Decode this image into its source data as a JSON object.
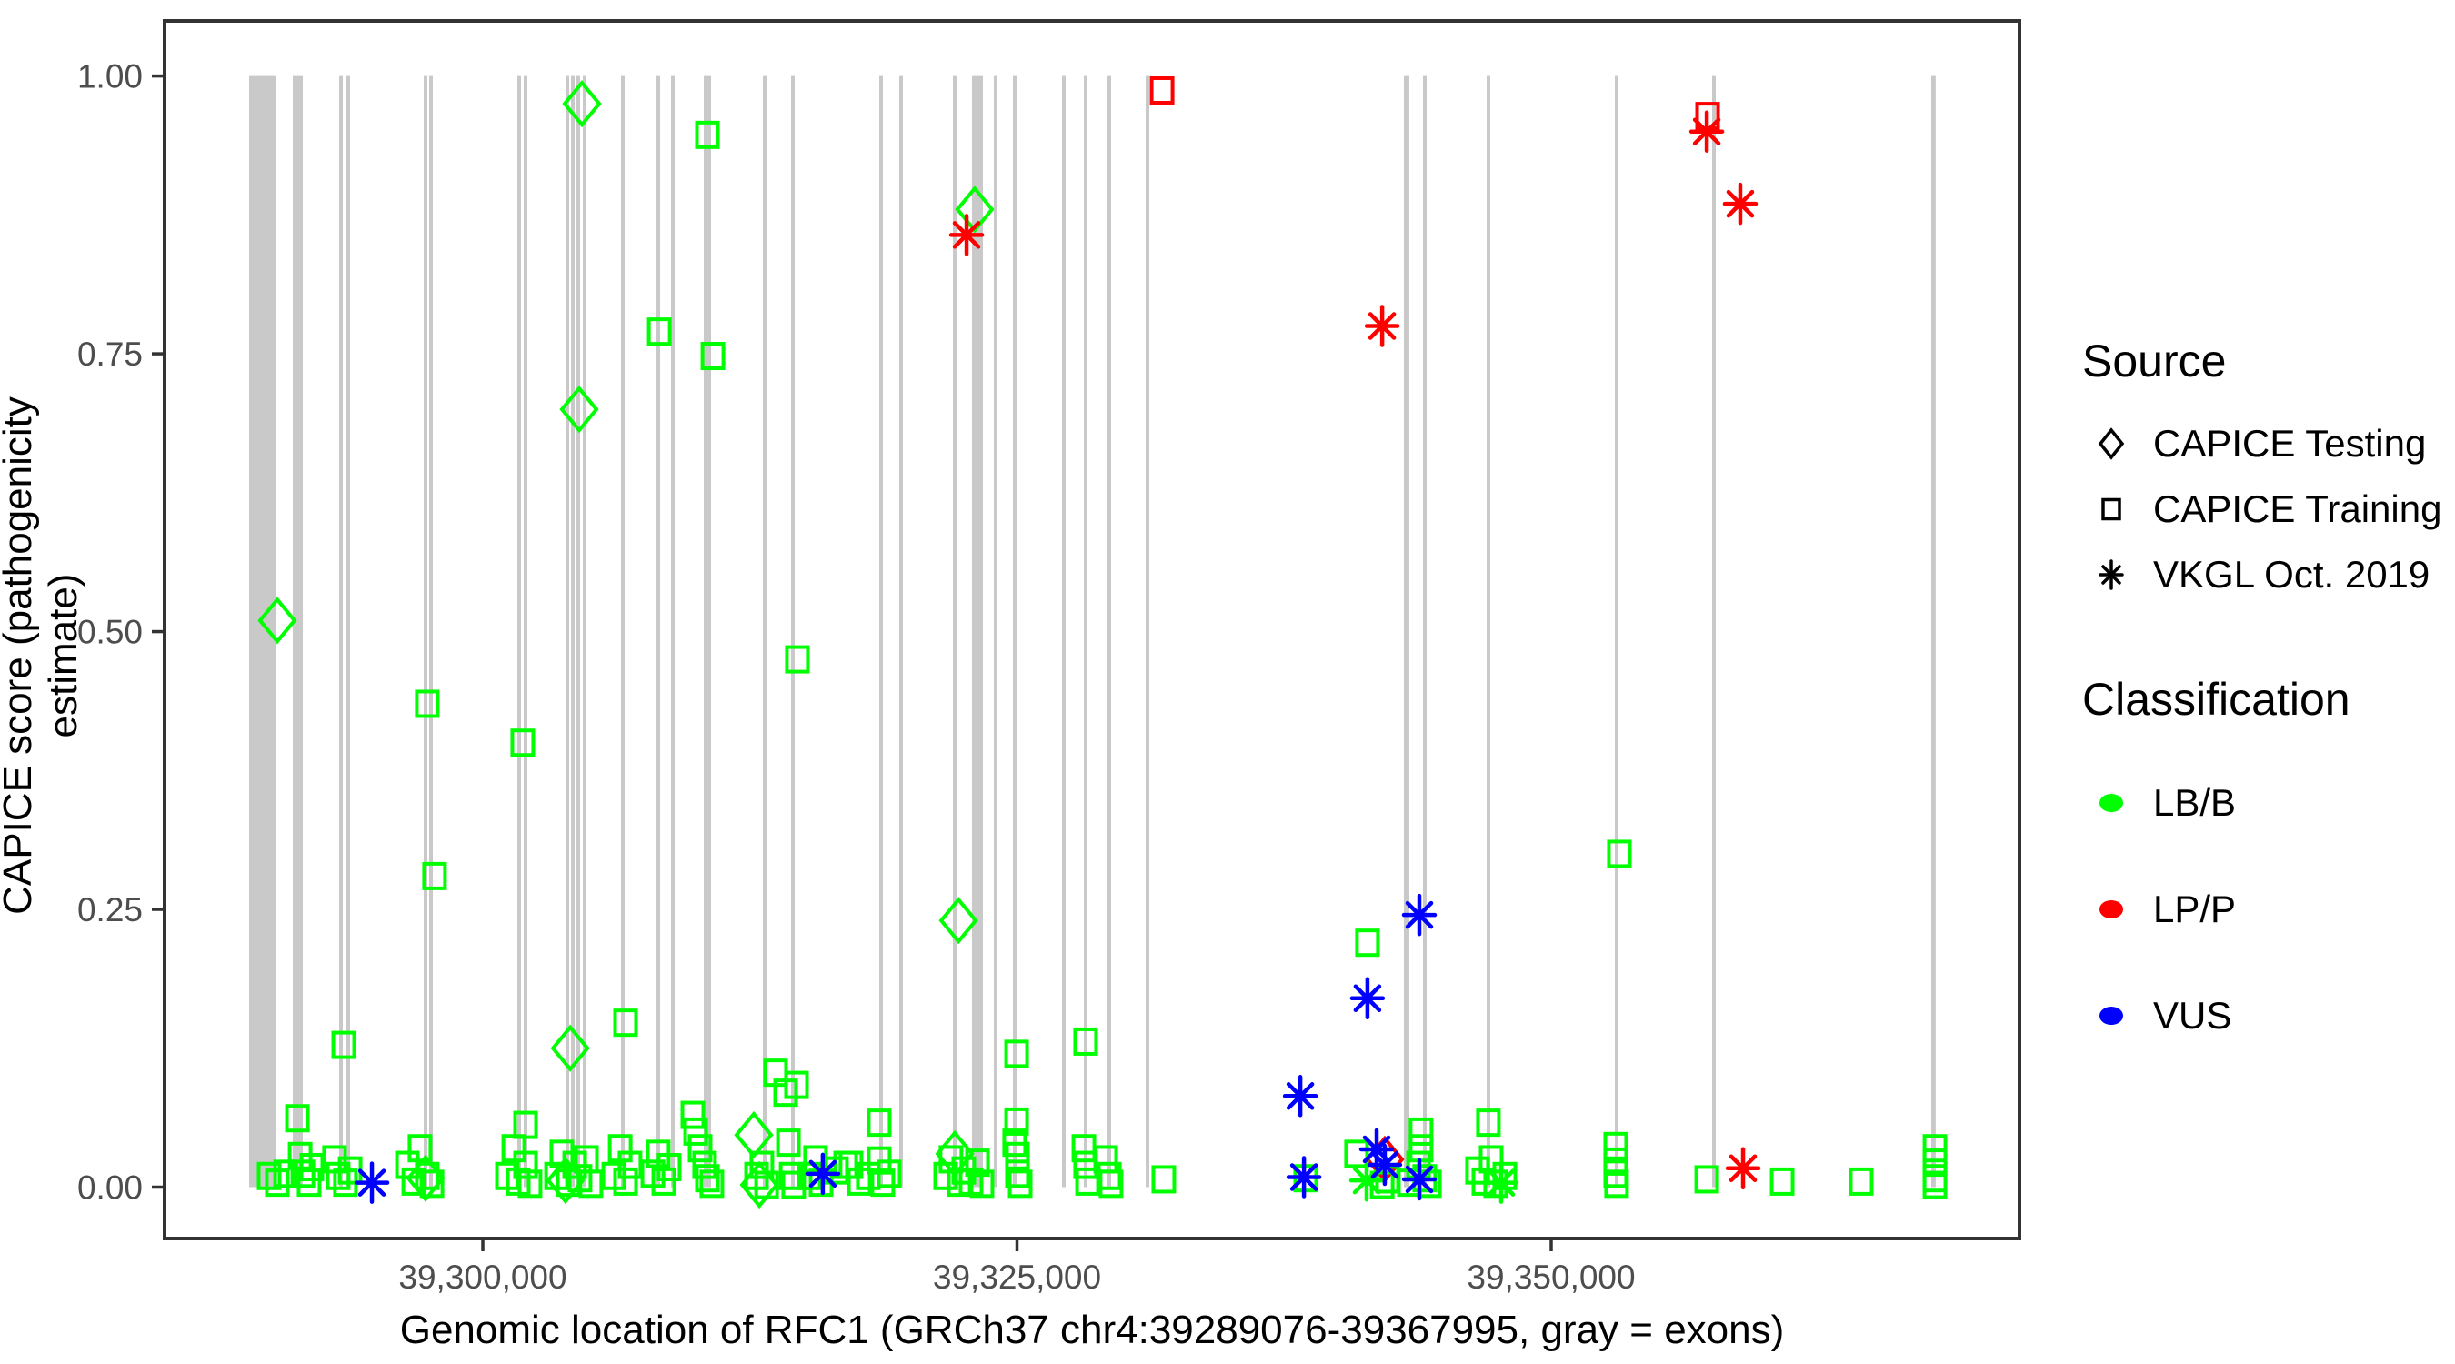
{
  "chart_data": {
    "type": "scatter",
    "title": "",
    "xlabel": "Genomic location of RFC1 (GRCh37 chr4:39289076-39367995, gray = exons)",
    "ylabel": "CAPICE score (pathogenicity estimate)",
    "x_axis": {
      "domain": [
        39285106,
        39371915
      ],
      "ticks": [
        {
          "value": 39300000,
          "label": "39,300,000"
        },
        {
          "value": 39325000,
          "label": "39,325,000"
        },
        {
          "value": 39350000,
          "label": "39,350,000"
        }
      ]
    },
    "y_axis": {
      "domain": [
        0,
        1
      ],
      "ticks": [
        {
          "value": 0.0,
          "label": "0.00"
        },
        {
          "value": 0.25,
          "label": "0.25"
        },
        {
          "value": 0.5,
          "label": "0.50"
        },
        {
          "value": 0.75,
          "label": "0.75"
        },
        {
          "value": 1.0,
          "label": "1.00"
        }
      ]
    },
    "grid": "off",
    "exon_color": "#C9C9C9",
    "gene_region_note": "gray = exons",
    "exons": [
      [
        39289064,
        39290340
      ],
      [
        39291107,
        39291575
      ],
      [
        39293277,
        39293447
      ],
      [
        39293574,
        39293787
      ],
      [
        39297234,
        39297404
      ],
      [
        39297489,
        39297660
      ],
      [
        39301617,
        39301787
      ],
      [
        39301915,
        39302085
      ],
      [
        39303872,
        39304042
      ],
      [
        39304128,
        39304298
      ],
      [
        39304383,
        39304511
      ],
      [
        39304681,
        39304851
      ],
      [
        39306468,
        39306638
      ],
      [
        39308128,
        39308298
      ],
      [
        39308808,
        39308979
      ],
      [
        39310340,
        39310681
      ],
      [
        39313106,
        39313277
      ],
      [
        39314425,
        39314595
      ],
      [
        39318553,
        39318723
      ],
      [
        39319489,
        39319660
      ],
      [
        39322000,
        39322170
      ],
      [
        39322893,
        39323404
      ],
      [
        39323914,
        39324042
      ],
      [
        39324808,
        39324978
      ],
      [
        39327106,
        39327234
      ],
      [
        39328127,
        39328255
      ],
      [
        39329234,
        39329404
      ],
      [
        39331021,
        39331149
      ],
      [
        39343106,
        39343361
      ],
      [
        39344000,
        39344128
      ],
      [
        39346978,
        39347148
      ],
      [
        39352978,
        39353149
      ],
      [
        39357532,
        39357702
      ],
      [
        39367787,
        39367995
      ]
    ],
    "series": [
      {
        "name": "CAPICE Testing LB/B",
        "source": "CAPICE Testing",
        "classification": "LB/B",
        "marker": "diamond",
        "color": "#00FF00",
        "points": [
          [
            39290380,
            0.51
          ],
          [
            39304090,
            0.125
          ],
          [
            39304510,
            0.7
          ],
          [
            39304640,
            0.975
          ],
          [
            39312680,
            0.047
          ],
          [
            39303870,
            0.006
          ],
          [
            39322090,
            0.03
          ],
          [
            39322260,
            0.24
          ],
          [
            39323020,
            0.88
          ],
          [
            39312940,
            0.002
          ],
          [
            39297320,
            0.008
          ]
        ]
      },
      {
        "name": "CAPICE Testing LP/P",
        "source": "CAPICE Testing",
        "classification": "LP/P",
        "marker": "diamond",
        "color": "#FF0000",
        "points": [
          [
            39342210,
            0.025
          ]
        ]
      },
      {
        "name": "CAPICE Training LB/B",
        "source": "CAPICE Training",
        "classification": "LB/B",
        "marker": "square",
        "color": "#00FF00",
        "points": [
          [
            39290000,
            0.01
          ],
          [
            39290380,
            0.004
          ],
          [
            39290770,
            0.012
          ],
          [
            39291320,
            0.062
          ],
          [
            39291450,
            0.028
          ],
          [
            39291580,
            0.012
          ],
          [
            39291870,
            0.004
          ],
          [
            39292000,
            0.018
          ],
          [
            39293060,
            0.025
          ],
          [
            39293230,
            0.01
          ],
          [
            39293490,
            0.128
          ],
          [
            39293570,
            0.004
          ],
          [
            39293790,
            0.015
          ],
          [
            39296470,
            0.02
          ],
          [
            39296770,
            0.005
          ],
          [
            39297060,
            0.035
          ],
          [
            39297400,
            0.435
          ],
          [
            39297400,
            0.01
          ],
          [
            39297620,
            0.003
          ],
          [
            39297740,
            0.28
          ],
          [
            39301150,
            0.01
          ],
          [
            39301450,
            0.035
          ],
          [
            39301660,
            0.005
          ],
          [
            39301870,
            0.4
          ],
          [
            39302000,
            0.056
          ],
          [
            39302000,
            0.02
          ],
          [
            39302210,
            0.003
          ],
          [
            39303450,
            0.01
          ],
          [
            39303700,
            0.03
          ],
          [
            39304000,
            0.004
          ],
          [
            39304300,
            0.02
          ],
          [
            39304550,
            0.008
          ],
          [
            39304850,
            0.025
          ],
          [
            39305060,
            0.003
          ],
          [
            39306130,
            0.01
          ],
          [
            39306430,
            0.035
          ],
          [
            39306680,
            0.005
          ],
          [
            39306680,
            0.148
          ],
          [
            39306890,
            0.02
          ],
          [
            39307960,
            0.012
          ],
          [
            39308210,
            0.03
          ],
          [
            39308260,
            0.77
          ],
          [
            39308470,
            0.005
          ],
          [
            39308720,
            0.018
          ],
          [
            39309830,
            0.065
          ],
          [
            39309960,
            0.05
          ],
          [
            39310170,
            0.035
          ],
          [
            39310380,
            0.02
          ],
          [
            39310510,
            0.947
          ],
          [
            39310510,
            0.008
          ],
          [
            39310720,
            0.003
          ],
          [
            39310770,
            0.748
          ],
          [
            39312810,
            0.01
          ],
          [
            39313060,
            0.02
          ],
          [
            39313280,
            0.002
          ],
          [
            39313700,
            0.103
          ],
          [
            39314170,
            0.085
          ],
          [
            39314300,
            0.04
          ],
          [
            39314430,
            0.01
          ],
          [
            39314550,
            0.002
          ],
          [
            39314680,
            0.092
          ],
          [
            39314720,
            0.475
          ],
          [
            39315280,
            0.01
          ],
          [
            39315570,
            0.025
          ],
          [
            39315830,
            0.004
          ],
          [
            39316550,
            0.015
          ],
          [
            39316980,
            0.02
          ],
          [
            39317230,
            0.02
          ],
          [
            39317620,
            0.005
          ],
          [
            39318040,
            0.01
          ],
          [
            39318550,
            0.058
          ],
          [
            39318550,
            0.024
          ],
          [
            39318720,
            0.004
          ],
          [
            39319020,
            0.012
          ],
          [
            39321660,
            0.01
          ],
          [
            39321910,
            0.025
          ],
          [
            39322300,
            0.004
          ],
          [
            39322510,
            0.015
          ],
          [
            39322850,
            0.005
          ],
          [
            39323150,
            0.022
          ],
          [
            39323360,
            0.003
          ],
          [
            39324890,
            0.04
          ],
          [
            39324980,
            0.12
          ],
          [
            39324980,
            0.059
          ],
          [
            39325020,
            0.028
          ],
          [
            39325020,
            0.012
          ],
          [
            39325150,
            0.003
          ],
          [
            39328130,
            0.035
          ],
          [
            39328210,
            0.131
          ],
          [
            39328210,
            0.02
          ],
          [
            39328300,
            0.005
          ],
          [
            39329150,
            0.025
          ],
          [
            39329320,
            0.01
          ],
          [
            39329400,
            0.003
          ],
          [
            39331870,
            0.007
          ],
          [
            39338510,
            0.008
          ],
          [
            39340890,
            0.03
          ],
          [
            39341400,
            0.22
          ],
          [
            39342090,
            0.002
          ],
          [
            39342340,
            0.007
          ],
          [
            39343360,
            0.004
          ],
          [
            39343790,
            0.02
          ],
          [
            39343910,
            0.05
          ],
          [
            39343910,
            0.035
          ],
          [
            39344080,
            0.008
          ],
          [
            39344300,
            0.003
          ],
          [
            39346550,
            0.015
          ],
          [
            39346850,
            0.005
          ],
          [
            39347060,
            0.058
          ],
          [
            39347190,
            0.025
          ],
          [
            39347400,
            0.003
          ],
          [
            39347830,
            0.01
          ],
          [
            39353020,
            0.037
          ],
          [
            39353020,
            0.023
          ],
          [
            39353020,
            0.012
          ],
          [
            39353060,
            0.003
          ],
          [
            39353190,
            0.3
          ],
          [
            39357280,
            0.007
          ],
          [
            39360810,
            0.005
          ],
          [
            39364510,
            0.005
          ],
          [
            39367960,
            0.035
          ],
          [
            39367960,
            0.022
          ],
          [
            39367960,
            0.008
          ],
          [
            39367960,
            0.002
          ]
        ]
      },
      {
        "name": "CAPICE Training LP/P",
        "source": "CAPICE Training",
        "classification": "LP/P",
        "marker": "square",
        "color": "#FF0000",
        "points": [
          [
            39331790,
            0.987
          ],
          [
            39357320,
            0.964
          ]
        ]
      },
      {
        "name": "VKGL LB/B",
        "source": "VKGL Oct. 2019",
        "classification": "LB/B",
        "marker": "asterisk",
        "color": "#00FF00",
        "points": [
          [
            39341360,
            0.006
          ],
          [
            39347660,
            0.004
          ]
        ]
      },
      {
        "name": "VKGL LP/P",
        "source": "VKGL Oct. 2019",
        "classification": "LP/P",
        "marker": "asterisk",
        "color": "#FF0000",
        "points": [
          [
            39322640,
            0.857
          ],
          [
            39342090,
            0.775
          ],
          [
            39357280,
            0.95
          ],
          [
            39358850,
            0.885
          ],
          [
            39358980,
            0.017
          ]
        ]
      },
      {
        "name": "VKGL VUS",
        "source": "VKGL Oct. 2019",
        "classification": "VUS",
        "marker": "asterisk",
        "color": "#0000FF",
        "points": [
          [
            39294810,
            0.004
          ],
          [
            39315910,
            0.012
          ],
          [
            39338260,
            0.082
          ],
          [
            39338430,
            0.009
          ],
          [
            39341400,
            0.17
          ],
          [
            39341830,
            0.034
          ],
          [
            39342210,
            0.02
          ],
          [
            39343830,
            0.245
          ],
          [
            39343830,
            0.007
          ]
        ]
      }
    ],
    "legend": {
      "position": "right",
      "source": {
        "title": "Source",
        "items": [
          {
            "label": "CAPICE Testing",
            "marker": "diamond"
          },
          {
            "label": "CAPICE Training",
            "marker": "square"
          },
          {
            "label": "VKGL Oct. 2019",
            "marker": "asterisk"
          }
        ]
      },
      "classification": {
        "title": "Classification",
        "items": [
          {
            "label": "LB/B",
            "color": "#00FF00"
          },
          {
            "label": "LP/P",
            "color": "#FF0000"
          },
          {
            "label": "VUS",
            "color": "#0000FF"
          }
        ]
      }
    },
    "style_colors": {
      "panel_border": "#333333",
      "tick_label": "#4d4d4d",
      "axis_title": "#000000"
    }
  }
}
